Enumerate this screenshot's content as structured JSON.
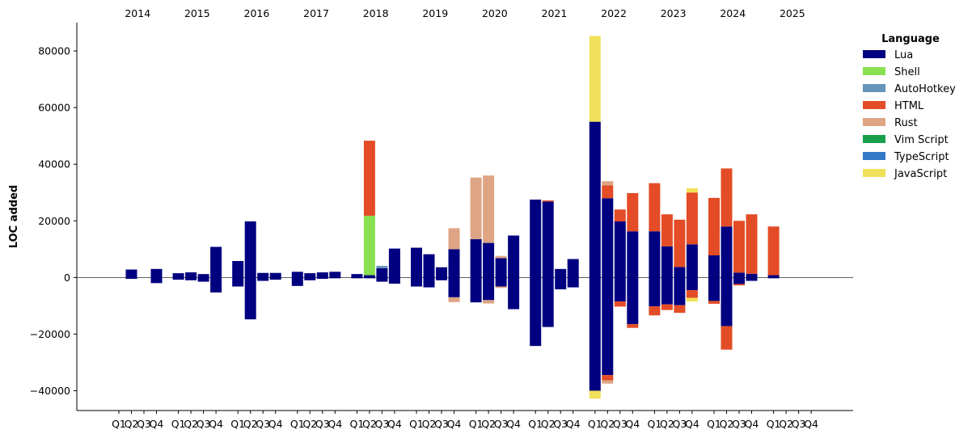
{
  "chart_data": {
    "type": "bar",
    "stacked": true,
    "diverging": true,
    "xlabel": "",
    "ylabel": "LOC added",
    "ylim": [
      -47000,
      90000
    ],
    "yticks": [
      -40000,
      -20000,
      0,
      20000,
      40000,
      60000,
      80000
    ],
    "years": [
      "2014",
      "2015",
      "2016",
      "2017",
      "2018",
      "2019",
      "2020",
      "2021",
      "2022",
      "2023",
      "2024",
      "2025"
    ],
    "quarters": [
      "Q1",
      "Q2",
      "Q3",
      "Q4"
    ],
    "legend": {
      "title": "Language",
      "position": "top-right",
      "entries": [
        {
          "name": "Lua",
          "color": "#000080"
        },
        {
          "name": "Shell",
          "color": "#89e051"
        },
        {
          "name": "AutoHotkey",
          "color": "#6594b9"
        },
        {
          "name": "HTML",
          "color": "#e34c26"
        },
        {
          "name": "Rust",
          "color": "#dea584"
        },
        {
          "name": "Vim Script",
          "color": "#199f4b"
        },
        {
          "name": "TypeScript",
          "color": "#3178c6"
        },
        {
          "name": "JavaScript",
          "color": "#f1e05a"
        }
      ]
    },
    "bars": [
      {
        "year": "2014",
        "quarter": "Q2",
        "pos": {
          "Lua": 2800
        },
        "neg": {
          "Lua": -500
        }
      },
      {
        "year": "2014",
        "quarter": "Q4",
        "pos": {
          "Lua": 3000
        },
        "neg": {
          "Lua": -2000
        }
      },
      {
        "year": "2015",
        "quarter": "Q1",
        "pos": {
          "Lua": 1500
        },
        "neg": {
          "Lua": -800
        }
      },
      {
        "year": "2015",
        "quarter": "Q2",
        "pos": {
          "Lua": 1800
        },
        "neg": {
          "Lua": -1000
        }
      },
      {
        "year": "2015",
        "quarter": "Q3",
        "pos": {
          "Lua": 1200
        },
        "neg": {
          "Lua": -1500
        }
      },
      {
        "year": "2015",
        "quarter": "Q4",
        "pos": {
          "Lua": 10800
        },
        "neg": {
          "Lua": -5300
        }
      },
      {
        "year": "2016",
        "quarter": "Q1",
        "pos": {
          "Lua": 5800
        },
        "neg": {
          "Lua": -3200
        }
      },
      {
        "year": "2016",
        "quarter": "Q2",
        "pos": {
          "Lua": 19800
        },
        "neg": {
          "Lua": -14800
        }
      },
      {
        "year": "2016",
        "quarter": "Q3",
        "pos": {
          "Lua": 1600
        },
        "neg": {
          "Lua": -1200
        }
      },
      {
        "year": "2016",
        "quarter": "Q4",
        "pos": {
          "Lua": 1600
        },
        "neg": {
          "Lua": -800
        }
      },
      {
        "year": "2017",
        "quarter": "Q1",
        "pos": {
          "Lua": 2000
        },
        "neg": {
          "Lua": -3000
        }
      },
      {
        "year": "2017",
        "quarter": "Q2",
        "pos": {
          "Lua": 1500
        },
        "neg": {
          "Lua": -1000
        }
      },
      {
        "year": "2017",
        "quarter": "Q3",
        "pos": {
          "Lua": 1800
        },
        "neg": {
          "Lua": -500
        }
      },
      {
        "year": "2017",
        "quarter": "Q4",
        "pos": {
          "Lua": 2000
        },
        "neg": {
          "Lua": -300
        }
      },
      {
        "year": "2018",
        "quarter": "Q1",
        "pos": {
          "Lua": 1200
        },
        "neg": {
          "Lua": -300
        }
      },
      {
        "year": "2018",
        "quarter": "Q2",
        "pos": {
          "Lua": 800,
          "Shell": 21000,
          "HTML": 26500
        },
        "neg": {
          "Lua": -300
        }
      },
      {
        "year": "2018",
        "quarter": "Q3",
        "pos": {
          "Lua": 3300,
          "AutoHotkey": 800
        },
        "neg": {
          "Lua": -1500
        }
      },
      {
        "year": "2018",
        "quarter": "Q4",
        "pos": {
          "Lua": 10200
        },
        "neg": {
          "Lua": -2200
        }
      },
      {
        "year": "2019",
        "quarter": "Q1",
        "pos": {
          "Lua": 10500
        },
        "neg": {
          "Lua": -3200
        }
      },
      {
        "year": "2019",
        "quarter": "Q2",
        "pos": {
          "Lua": 8200
        },
        "neg": {
          "Lua": -3500
        }
      },
      {
        "year": "2019",
        "quarter": "Q3",
        "pos": {
          "Lua": 3600
        },
        "neg": {
          "Lua": -1000
        }
      },
      {
        "year": "2019",
        "quarter": "Q4",
        "pos": {
          "Lua": 10000,
          "Rust": 7400
        },
        "neg": {
          "Lua": -7000,
          "Rust": -1700
        }
      },
      {
        "year": "2020",
        "quarter": "Q1",
        "pos": {
          "Lua": 13500,
          "Rust": 21800
        },
        "neg": {
          "Lua": -8800
        }
      },
      {
        "year": "2020",
        "quarter": "Q2",
        "pos": {
          "Lua": 12200,
          "Rust": 23800
        },
        "neg": {
          "Lua": -8000,
          "Rust": -1200
        }
      },
      {
        "year": "2020",
        "quarter": "Q3",
        "pos": {
          "Lua": 6800,
          "Rust": 800
        },
        "neg": {
          "Lua": -3200,
          "Rust": -500
        }
      },
      {
        "year": "2020",
        "quarter": "Q4",
        "pos": {
          "Lua": 14800
        },
        "neg": {
          "Lua": -11200
        }
      },
      {
        "year": "2021",
        "quarter": "Q1",
        "pos": {
          "Lua": 27500
        },
        "neg": {
          "Lua": -24200
        }
      },
      {
        "year": "2021",
        "quarter": "Q2",
        "pos": {
          "Lua": 26800,
          "HTML": 400
        },
        "neg": {
          "Lua": -17500
        }
      },
      {
        "year": "2021",
        "quarter": "Q3",
        "pos": {
          "Lua": 3000
        },
        "neg": {
          "Lua": -4200
        }
      },
      {
        "year": "2021",
        "quarter": "Q4",
        "pos": {
          "Lua": 6500
        },
        "neg": {
          "Lua": -3500
        }
      },
      {
        "year": "2022",
        "quarter": "Q1",
        "pos": {
          "Lua": 55000,
          "JavaScript": 30300
        },
        "neg": {
          "Lua": -40000,
          "JavaScript": -2800
        }
      },
      {
        "year": "2022",
        "quarter": "Q2",
        "pos": {
          "Lua": 28000,
          "HTML": 4500,
          "Rust": 1500
        },
        "neg": {
          "Lua": -34500,
          "HTML": -1800,
          "Rust": -1200
        }
      },
      {
        "year": "2022",
        "quarter": "Q3",
        "pos": {
          "Lua": 19800,
          "HTML": 4200
        },
        "neg": {
          "Lua": -8500,
          "HTML": -1800
        }
      },
      {
        "year": "2022",
        "quarter": "Q4",
        "pos": {
          "Lua": 16300,
          "HTML": 13500
        },
        "neg": {
          "Lua": -16500,
          "HTML": -1300
        }
      },
      {
        "year": "2023",
        "quarter": "Q1",
        "pos": {
          "Lua": 16300,
          "HTML": 17000
        },
        "neg": {
          "Lua": -10200,
          "HTML": -3200
        }
      },
      {
        "year": "2023",
        "quarter": "Q2",
        "pos": {
          "Lua": 11000,
          "HTML": 11300
        },
        "neg": {
          "Lua": -9500,
          "HTML": -2000
        }
      },
      {
        "year": "2023",
        "quarter": "Q3",
        "pos": {
          "Lua": 3700,
          "HTML": 16700
        },
        "neg": {
          "Lua": -9800,
          "HTML": -2700
        }
      },
      {
        "year": "2023",
        "quarter": "Q4",
        "pos": {
          "Lua": 11700,
          "HTML": 18300,
          "JavaScript": 1500
        },
        "neg": {
          "Lua": -4500,
          "HTML": -2700,
          "JavaScript": -1300
        }
      },
      {
        "year": "2024",
        "quarter": "Q1",
        "pos": {
          "Lua": 7800,
          "HTML": 20300
        },
        "neg": {
          "Lua": -8300,
          "HTML": -1000
        }
      },
      {
        "year": "2024",
        "quarter": "Q2",
        "pos": {
          "Lua": 18000,
          "HTML": 20500
        },
        "neg": {
          "Lua": -17200,
          "HTML": -8300
        }
      },
      {
        "year": "2024",
        "quarter": "Q3",
        "pos": {
          "Lua": 1700,
          "HTML": 18300
        },
        "neg": {
          "Lua": -2300,
          "HTML": -500
        }
      },
      {
        "year": "2024",
        "quarter": "Q4",
        "pos": {
          "Lua": 1300,
          "HTML": 21000
        },
        "neg": {
          "Lua": -1200
        }
      },
      {
        "year": "2025",
        "quarter": "Q1",
        "pos": {
          "Lua": 800,
          "HTML": 17200
        },
        "neg": {
          "Lua": -300
        }
      }
    ]
  }
}
